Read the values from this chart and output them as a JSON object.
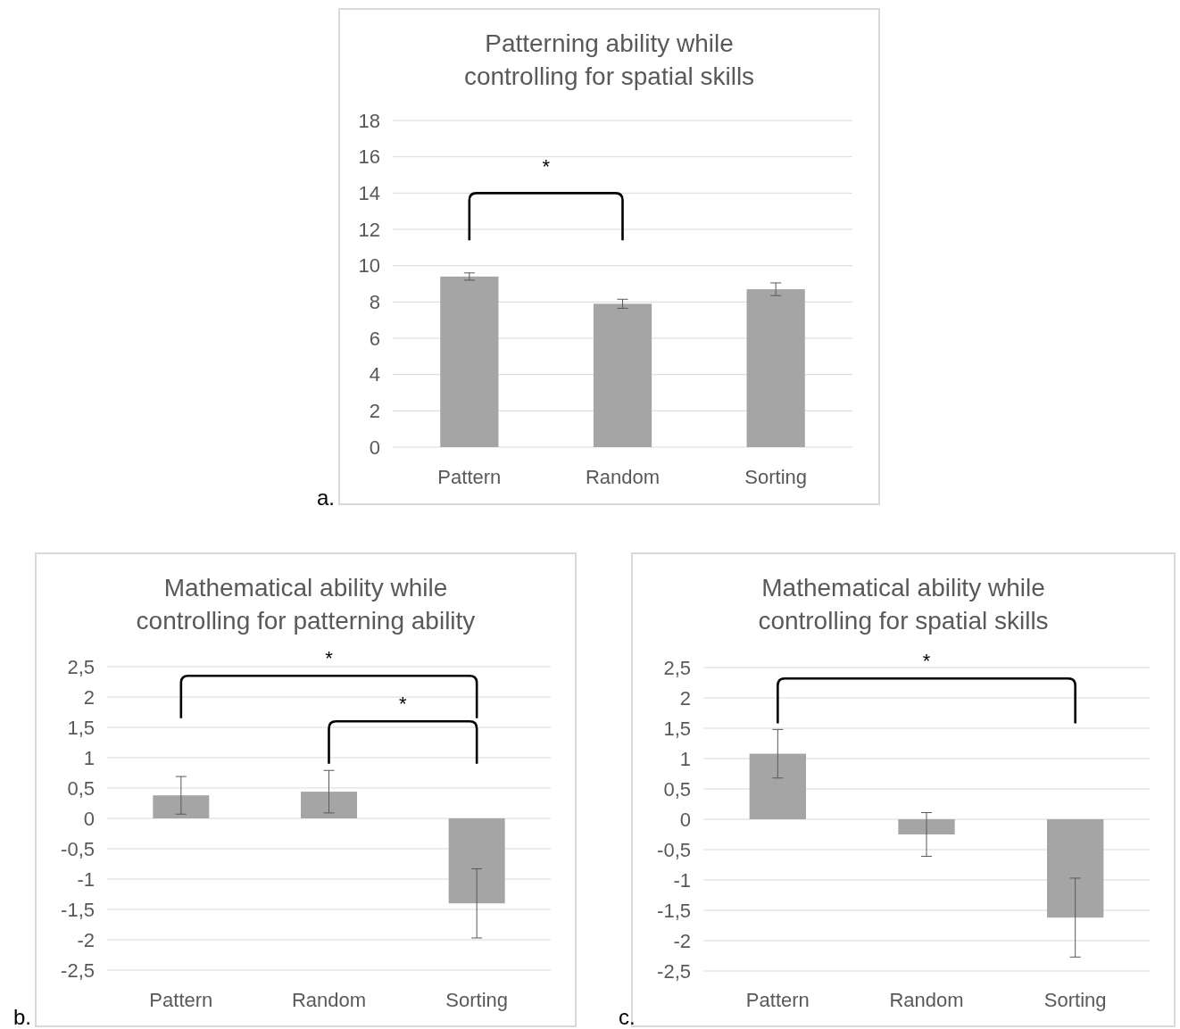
{
  "chart_data": [
    {
      "type": "bar",
      "title": "Patterning ability while controlling for spatial skills",
      "categories": [
        "Pattern",
        "Random",
        "Sorting"
      ],
      "values": [
        9.4,
        7.9,
        8.7
      ],
      "errors": [
        0.2,
        0.25,
        0.35
      ],
      "color": "#a5a5a5",
      "ylim": [
        0,
        18
      ],
      "yticks": [
        0,
        2,
        4,
        6,
        8,
        10,
        12,
        14,
        16,
        18
      ],
      "grid": "y",
      "annotations": [
        "*",
        "a."
      ]
    },
    {
      "type": "bar",
      "title": "Mathematical ability while controlling for patterning ability",
      "categories": [
        "Pattern",
        "Random",
        "Sorting"
      ],
      "values": [
        0.38,
        0.44,
        -1.4
      ],
      "errors": [
        0.31,
        0.35,
        0.57
      ],
      "color": "#a5a5a5",
      "ylim": [
        -2.5,
        2.5
      ],
      "yticks": [
        {
          "value": -2.5,
          "label": "-2,5"
        },
        -2,
        {
          "value": -1.5,
          "label": "-1,5"
        },
        -1,
        {
          "value": -0.5,
          "label": "-0,5"
        },
        0,
        {
          "value": 0.5,
          "label": "0,5"
        },
        1,
        {
          "value": 1.5,
          "label": "1,5"
        },
        2,
        {
          "value": 2.5,
          "label": "2,5"
        }
      ],
      "grid": "y",
      "annotations": [
        "*",
        "*",
        "b."
      ]
    },
    {
      "type": "bar",
      "title": "Mathematical ability while controlling for spatial skills",
      "categories": [
        "Pattern",
        "Random",
        "Sorting"
      ],
      "values": [
        1.08,
        -0.25,
        -1.62
      ],
      "errors": [
        0.4,
        0.36,
        0.65
      ],
      "color": "#a5a5a5",
      "ylim": [
        -2.5,
        2.5
      ],
      "yticks": [
        {
          "value": -2.5,
          "label": "-2,5"
        },
        -2,
        {
          "value": -1.5,
          "label": "-1,5"
        },
        -1,
        {
          "value": -0.5,
          "label": "-0,5"
        },
        0,
        {
          "value": 0.5,
          "label": "0,5"
        },
        1,
        {
          "value": 1.5,
          "label": "1,5"
        },
        2,
        {
          "value": 2.5,
          "label": "2,5"
        }
      ],
      "grid": "y",
      "annotations": [
        "*",
        "c."
      ]
    }
  ]
}
